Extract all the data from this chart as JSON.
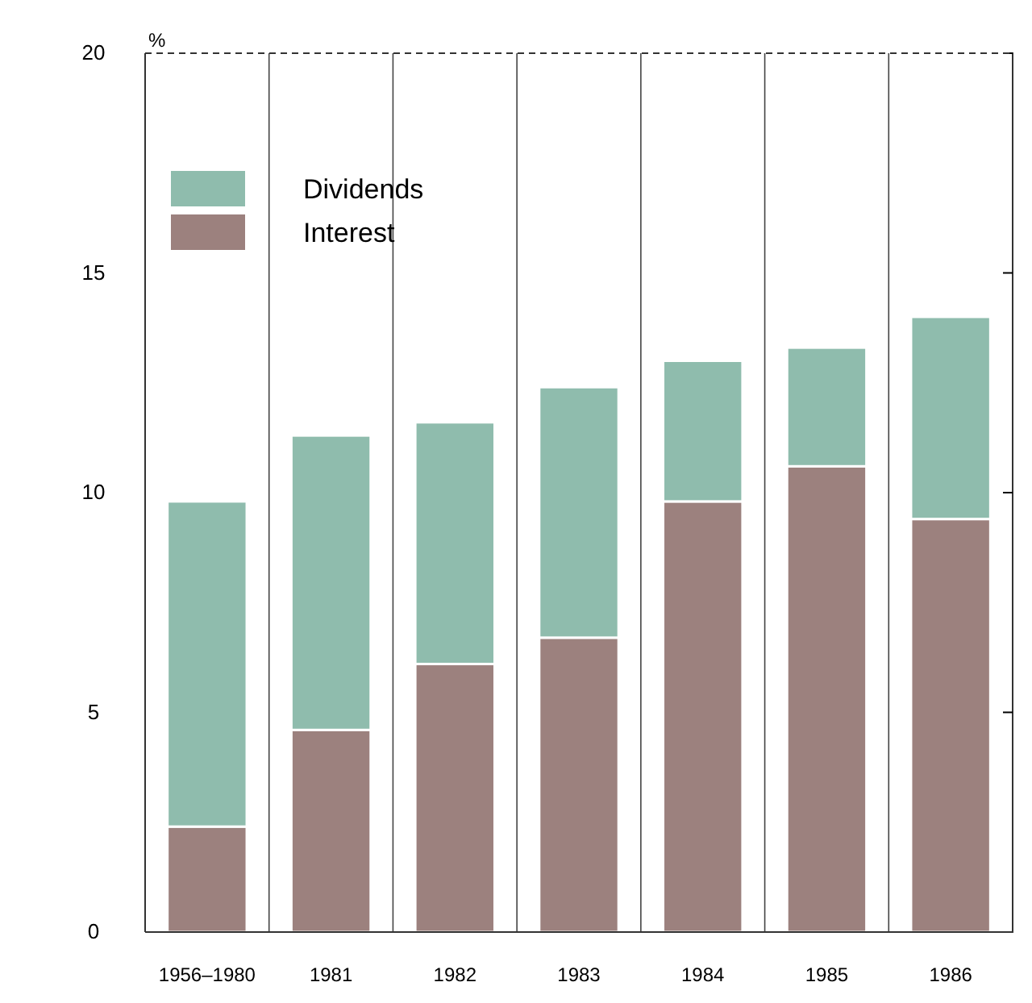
{
  "chart_data": {
    "type": "bar",
    "ylabel": "%",
    "categories": [
      "1956–1980",
      "1981",
      "1982",
      "1983",
      "1984",
      "1985",
      "1986"
    ],
    "series": [
      {
        "name": "Interest",
        "color": "#9c817e",
        "values": [
          2.4,
          4.6,
          6.1,
          6.7,
          9.8,
          10.6,
          9.4
        ]
      },
      {
        "name": "Dividends",
        "color": "#8fbcad",
        "values": [
          7.4,
          6.7,
          5.5,
          5.7,
          3.2,
          2.7,
          4.6
        ]
      }
    ],
    "stacked": true,
    "ylim": [
      0,
      20
    ],
    "yticks": [
      0,
      5,
      10,
      15,
      20
    ],
    "grid": "x",
    "legend": "top left"
  }
}
